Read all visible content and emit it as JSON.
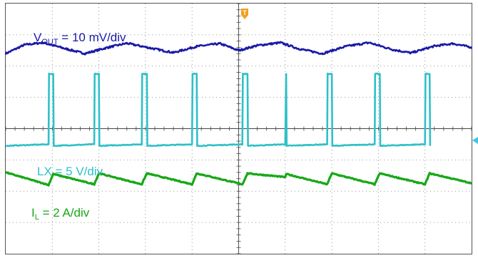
{
  "colors": {
    "vout": "#1a1aa6",
    "lx": "#2fc0c8",
    "il": "#17a817",
    "grid": "#7a7a7a",
    "trigger": "#f0a020",
    "trigger_level": "#38c8e8"
  },
  "trigger_marker": {
    "label": "T"
  },
  "chart_data": {
    "type": "line",
    "title": "",
    "grid": true,
    "divisions": {
      "x": 10,
      "y": 8
    },
    "x_unit": "div",
    "y_unit": "div",
    "series": [
      {
        "key": "vout",
        "label": {
          "main": "V",
          "sub": "OUT",
          "rest": " = 10 mV/div"
        },
        "x": [
          0,
          0.4,
          0.8,
          1.3,
          1.7,
          2.2,
          2.6,
          3.1,
          3.6,
          4.1,
          4.6,
          5.0,
          5.4,
          5.9,
          6.3,
          6.8,
          7.3,
          7.8,
          8.3,
          8.7,
          9.2,
          9.6,
          10.0
        ],
        "y": [
          6.4,
          6.68,
          6.75,
          6.55,
          6.4,
          6.6,
          6.73,
          6.58,
          6.43,
          6.63,
          6.72,
          6.5,
          6.66,
          6.75,
          6.55,
          6.4,
          6.63,
          6.75,
          6.53,
          6.42,
          6.64,
          6.72,
          6.6
        ]
      },
      {
        "key": "lx",
        "label": {
          "main": "LX = 5 V/div",
          "sub": "",
          "rest": ""
        },
        "x": [
          0,
          0.92,
          0.93,
          1.02,
          1.03,
          1.9,
          1.91,
          2.0,
          2.01,
          2.92,
          2.93,
          3.03,
          3.04,
          4.0,
          4.01,
          4.1,
          4.11,
          5.08,
          5.09,
          5.19,
          5.2,
          6.0
        ],
        "y": [
          3.45,
          3.5,
          5.75,
          5.75,
          3.45,
          3.5,
          5.75,
          5.75,
          3.45,
          3.5,
          5.75,
          5.75,
          3.45,
          3.5,
          5.75,
          5.75,
          3.45,
          3.5,
          5.75,
          5.75,
          3.45,
          3.5
        ]
      },
      {
        "key": "il",
        "label": {
          "main": "I",
          "sub": "L",
          "rest": " = 2 A/div"
        },
        "x": [
          0,
          0.92,
          1.02,
          1.9,
          2.0,
          2.92,
          3.03,
          4.0,
          4.1,
          5.08,
          5.19,
          6.0
        ],
        "y": [
          2.6,
          2.2,
          2.55,
          2.22,
          2.57,
          2.22,
          2.57,
          2.22,
          2.57,
          2.22,
          2.57,
          2.45
        ]
      }
    ]
  }
}
